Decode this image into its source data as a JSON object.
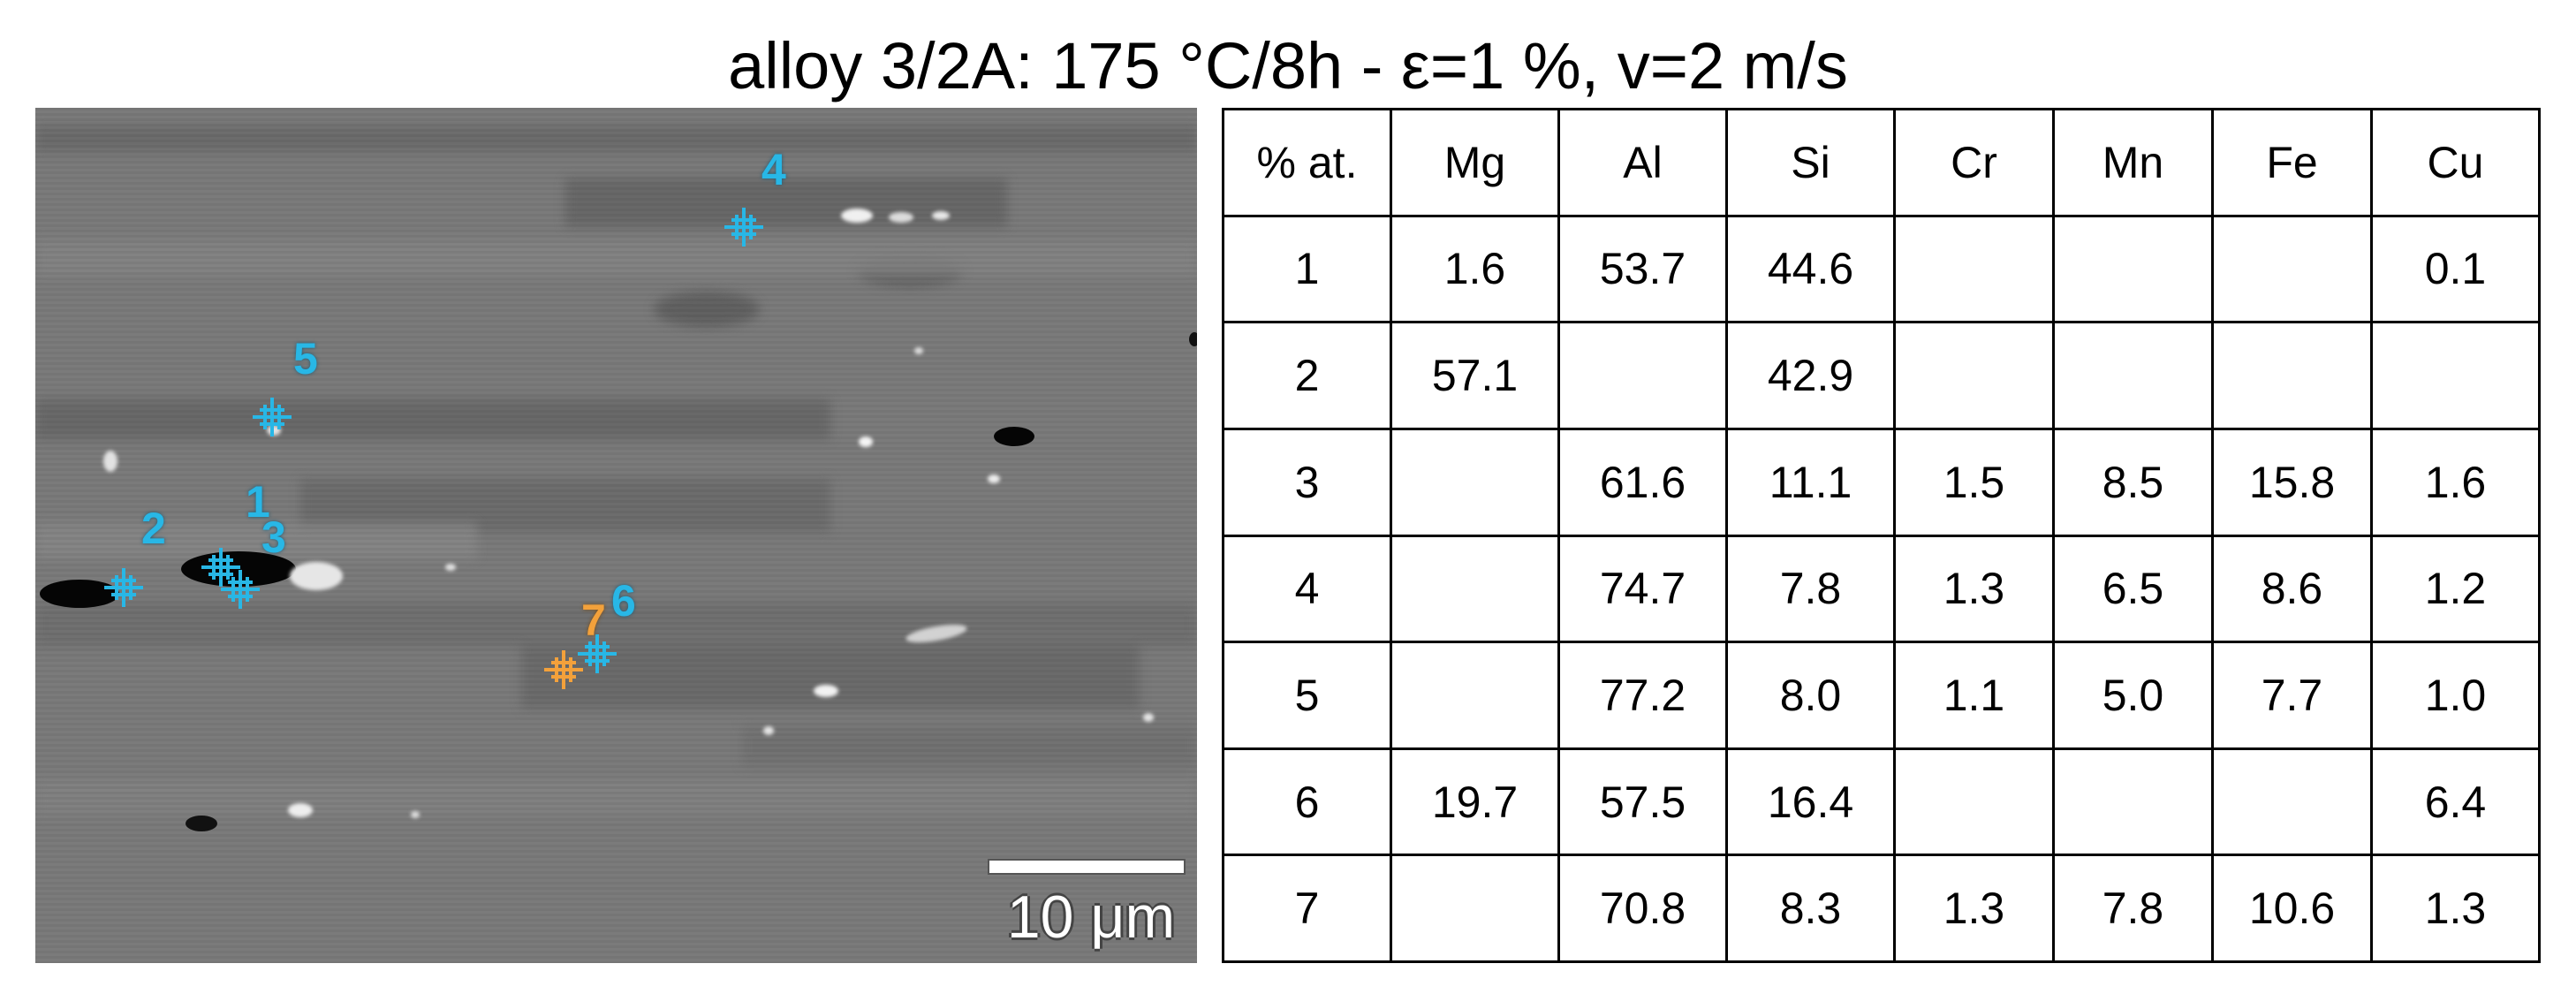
{
  "figure": {
    "title": "alloy 3/2A: 175 °C/8h - ε=1 %, v=2 m/s",
    "scale_bar_label": "10 μm",
    "colors": {
      "marker_blue": "#28b7e6",
      "marker_orange": "#f3a13b",
      "micrograph_background": "#7b7b7b"
    },
    "points": [
      {
        "label": "1",
        "color": "blue"
      },
      {
        "label": "2",
        "color": "blue"
      },
      {
        "label": "3",
        "color": "blue"
      },
      {
        "label": "4",
        "color": "blue"
      },
      {
        "label": "5",
        "color": "blue"
      },
      {
        "label": "6",
        "color": "blue"
      },
      {
        "label": "7",
        "color": "orange"
      }
    ]
  },
  "table": {
    "headers": [
      "% at.",
      "Mg",
      "Al",
      "Si",
      "Cr",
      "Mn",
      "Fe",
      "Cu"
    ],
    "rows": [
      [
        "1",
        "1.6",
        "53.7",
        "44.6",
        "",
        "",
        "",
        "0.1"
      ],
      [
        "2",
        "57.1",
        "",
        "42.9",
        "",
        "",
        "",
        ""
      ],
      [
        "3",
        "",
        "61.6",
        "11.1",
        "1.5",
        "8.5",
        "15.8",
        "1.6"
      ],
      [
        "4",
        "",
        "74.7",
        "7.8",
        "1.3",
        "6.5",
        "8.6",
        "1.2"
      ],
      [
        "5",
        "",
        "77.2",
        "8.0",
        "1.1",
        "5.0",
        "7.7",
        "1.0"
      ],
      [
        "6",
        "19.7",
        "57.5",
        "16.4",
        "",
        "",
        "",
        "6.4"
      ],
      [
        "7",
        "",
        "70.8",
        "8.3",
        "1.3",
        "7.8",
        "10.6",
        "1.3"
      ]
    ]
  }
}
